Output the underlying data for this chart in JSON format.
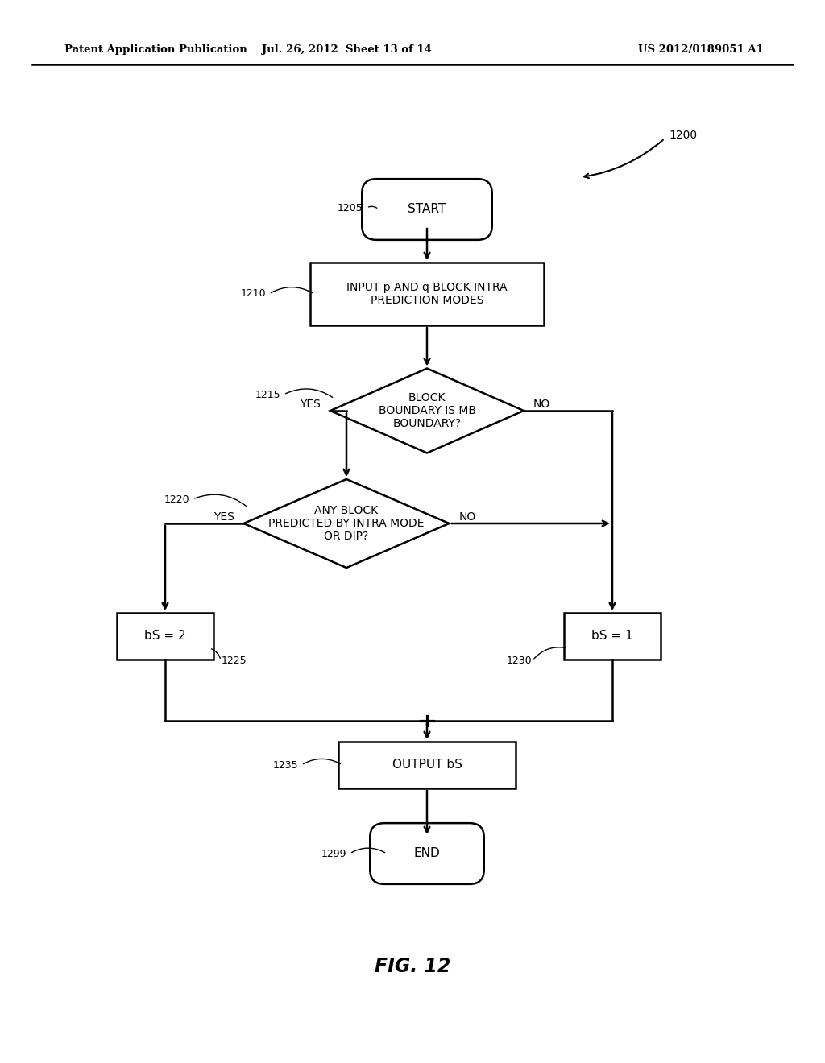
{
  "header_left": "Patent Application Publication",
  "header_mid": "Jul. 26, 2012  Sheet 13 of 14",
  "header_right": "US 2012/0189051 A1",
  "fig_label": "FIG. 12",
  "bg_color": "#ffffff",
  "line_color": "#000000",
  "text_color": "#000000"
}
